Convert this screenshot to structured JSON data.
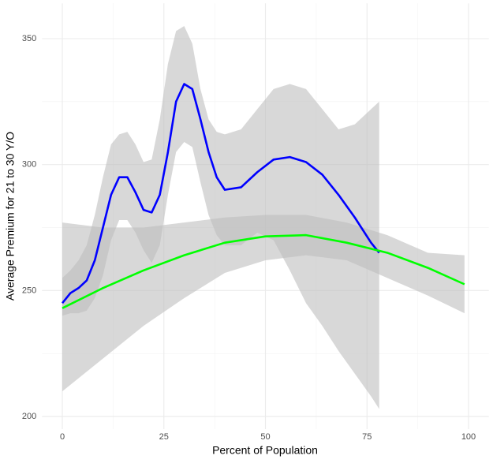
{
  "chart_data": {
    "type": "line",
    "x_label": "Percent of Population",
    "y_label": "Average Premium for 21 to 30 Y/O",
    "xlim": [
      -5,
      105
    ],
    "ylim": [
      195,
      364
    ],
    "xticks": [
      0,
      25,
      50,
      75,
      100
    ],
    "yticks": [
      200,
      250,
      300,
      350
    ],
    "grid": true,
    "band_color": "#bebebe",
    "series": [
      {
        "color": "#0000ff",
        "x": [
          0,
          2,
          4,
          6,
          8,
          10,
          12,
          14,
          16,
          18,
          20,
          22,
          24,
          26,
          28,
          30,
          32,
          34,
          36,
          38,
          40,
          44,
          48,
          52,
          56,
          60,
          64,
          68,
          72,
          76,
          78
        ],
        "values": [
          245,
          249,
          251,
          254,
          262,
          275,
          288,
          295,
          295,
          289,
          282,
          281,
          288,
          305,
          325,
          332,
          330,
          318,
          305,
          295,
          290,
          291,
          297,
          302,
          303,
          301,
          296,
          288,
          279,
          269,
          265
        ],
        "lower": [
          240,
          241,
          241,
          242,
          247,
          256,
          270,
          278,
          278,
          273,
          266,
          261,
          268,
          288,
          305,
          309,
          307,
          293,
          280,
          272,
          268,
          268,
          273,
          270,
          258,
          245,
          236,
          226,
          217,
          208,
          203
        ],
        "upper": [
          255,
          258,
          262,
          268,
          280,
          295,
          308,
          312,
          313,
          308,
          301,
          302,
          318,
          340,
          353,
          355,
          348,
          330,
          318,
          313,
          312,
          314,
          322,
          330,
          332,
          330,
          322,
          314,
          316,
          322,
          325
        ]
      },
      {
        "color": "#00ff00",
        "x": [
          0,
          10,
          20,
          30,
          40,
          50,
          60,
          70,
          80,
          90,
          99
        ],
        "values": [
          243,
          251,
          258,
          264,
          269,
          271.5,
          272,
          269,
          265,
          259,
          252.5
        ],
        "lower": [
          210,
          223,
          236,
          247,
          257,
          262,
          264,
          262,
          255,
          248,
          241
        ],
        "upper": [
          277,
          275,
          275,
          277,
          279,
          280,
          280,
          277,
          272,
          265,
          264
        ]
      }
    ]
  }
}
